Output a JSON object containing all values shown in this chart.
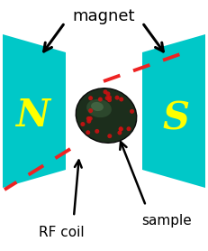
{
  "bg_color": "#ffffff",
  "cyan_color": "#00c8c8",
  "N_color": "#ffff00",
  "S_color": "#ffff00",
  "arrow_color": "#000000",
  "dashed_color": "#ee2222",
  "title": "magnet",
  "label_N": "N",
  "label_S": "S",
  "label_rf": "RF coil",
  "label_sample": "sample",
  "fig_width": 2.31,
  "fig_height": 2.78,
  "dpi": 100
}
